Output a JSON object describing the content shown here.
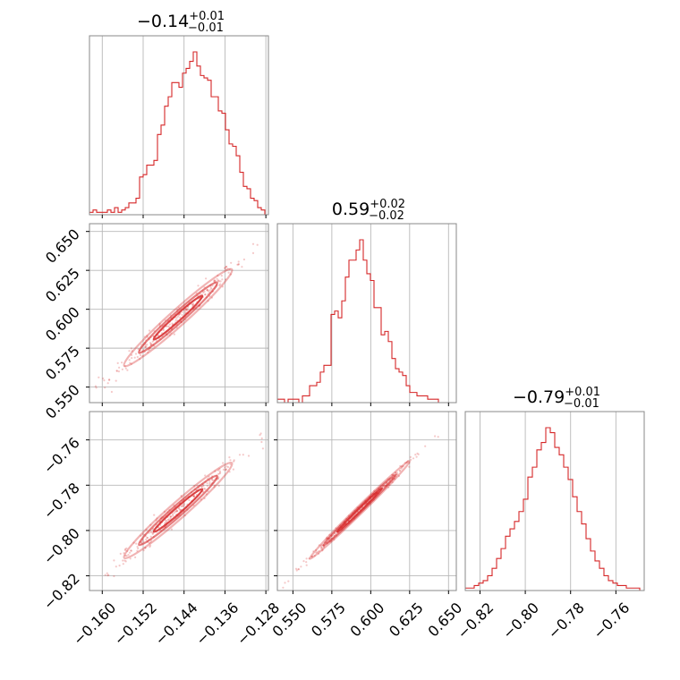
{
  "chart_data": {
    "type": "corner",
    "color": "#d62728",
    "titles": [
      {
        "main": "−0.14",
        "plus": "+0.01",
        "minus": "−0.01"
      },
      {
        "main": "0.59",
        "plus": "+0.02",
        "minus": "−0.02"
      },
      {
        "main": "−0.79",
        "plus": "+0.01",
        "minus": "−0.01"
      }
    ],
    "params": [
      {
        "range": [
          -0.1625,
          -0.1275
        ],
        "ticks": [
          -0.16,
          -0.152,
          -0.144,
          -0.136,
          -0.128
        ],
        "tick_labels": [
          "−0.160",
          "−0.152",
          "−0.144",
          "−0.136",
          "−0.128"
        ]
      },
      {
        "range": [
          0.54,
          0.655
        ],
        "ticks": [
          0.55,
          0.575,
          0.6,
          0.625,
          0.65
        ],
        "tick_labels": [
          "0.550",
          "0.575",
          "0.600",
          "0.625",
          "0.650"
        ]
      },
      {
        "range": [
          -0.8265,
          -0.7475
        ],
        "ticks": [
          -0.82,
          -0.8,
          -0.78,
          -0.76
        ],
        "tick_labels": [
          "−0.82",
          "−0.80",
          "−0.78",
          "−0.76"
        ]
      }
    ],
    "histograms": [
      {
        "counts": [
          1,
          2,
          1,
          1,
          1,
          2,
          1,
          3,
          1,
          2,
          3,
          5,
          5,
          7,
          16,
          17,
          21,
          21,
          23,
          34,
          38,
          46,
          50,
          56,
          56,
          54,
          60,
          62,
          65,
          69,
          63,
          59,
          58,
          57,
          50,
          50,
          44,
          43,
          36,
          30,
          29,
          25,
          18,
          12,
          11,
          7,
          6,
          3,
          2,
          0
        ]
      },
      {
        "counts": [
          1,
          1,
          0,
          1,
          1,
          1,
          0,
          2,
          2,
          5,
          5,
          6,
          9,
          11,
          11,
          26,
          27,
          25,
          30,
          37,
          42,
          42,
          45,
          48,
          42,
          38,
          36,
          28,
          28,
          20,
          21,
          18,
          13,
          10,
          9,
          8,
          5,
          3,
          3,
          2,
          2,
          2,
          1,
          1,
          1,
          0,
          0,
          0,
          0,
          0
        ]
      },
      {
        "counts": [
          1,
          1,
          2,
          3,
          4,
          6,
          9,
          13,
          17,
          22,
          25,
          28,
          32,
          37,
          46,
          50,
          57,
          60,
          66,
          64,
          58,
          55,
          50,
          45,
          38,
          32,
          27,
          21,
          16,
          12,
          9,
          6,
          4,
          3,
          2,
          2,
          1,
          1,
          1,
          0
        ]
      }
    ],
    "grid": true,
    "grid_on": "on"
  }
}
